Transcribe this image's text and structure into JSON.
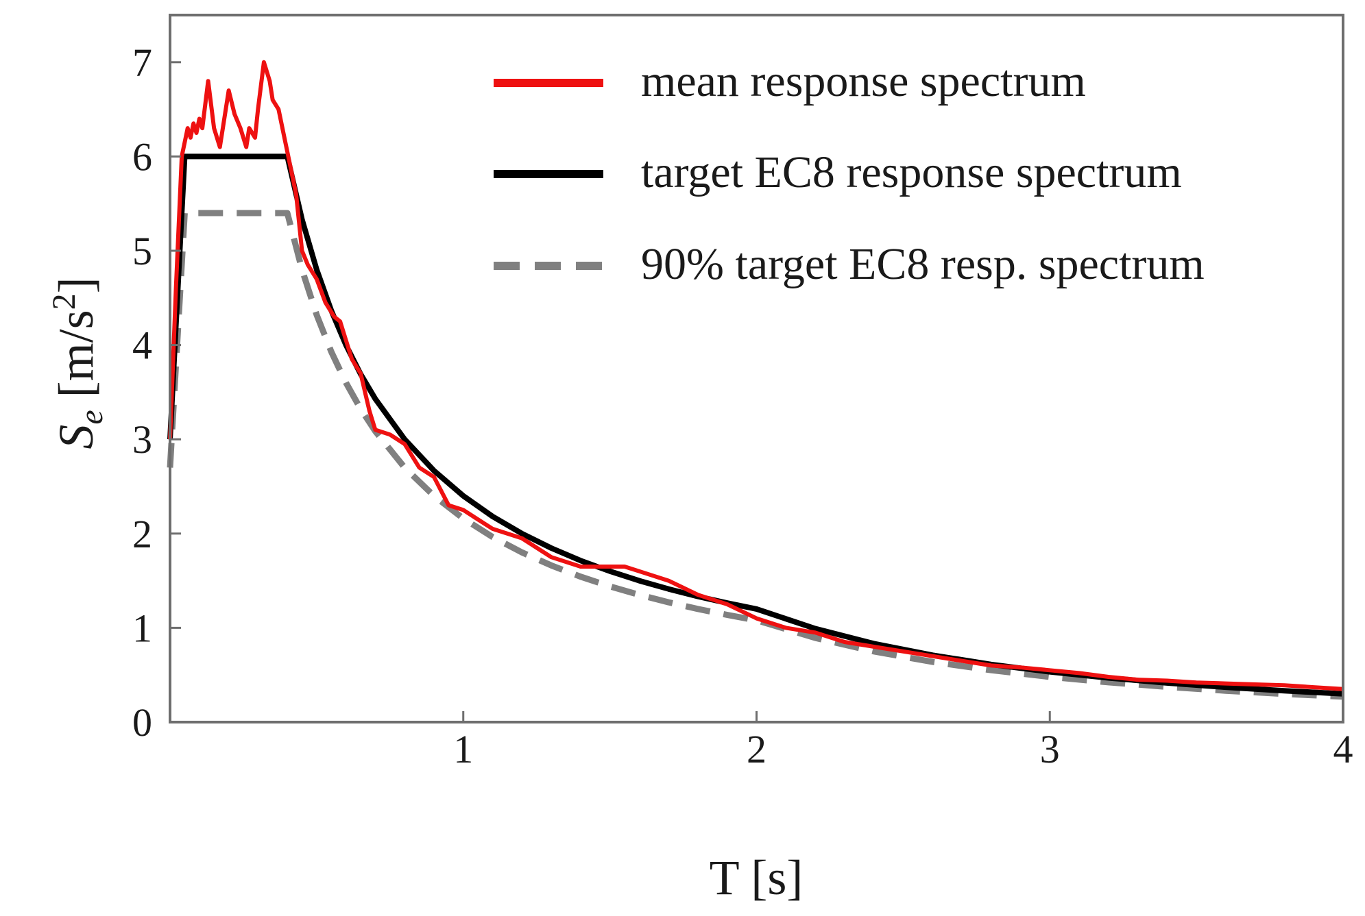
{
  "chart_data": {
    "type": "line",
    "title": "",
    "xlabel": "T [s]",
    "ylabel": {
      "base": "S",
      "subscript": "e",
      "unit_prefix": " [m/s",
      "unit_power": "2",
      "unit_suffix": "]"
    },
    "xlim": [
      0,
      4
    ],
    "ylim": [
      0,
      7.5
    ],
    "xticks": [
      1,
      2,
      3,
      4
    ],
    "yticks": [
      0,
      1,
      2,
      3,
      4,
      5,
      6,
      7
    ],
    "grid": false,
    "legend_position": "top-right",
    "series": [
      {
        "name": "mean response spectrum",
        "color": "#ee1111",
        "style": "solid",
        "points": [
          [
            0,
            3.0
          ],
          [
            0.02,
            4.6
          ],
          [
            0.04,
            6.0
          ],
          [
            0.05,
            6.15
          ],
          [
            0.06,
            6.3
          ],
          [
            0.07,
            6.2
          ],
          [
            0.08,
            6.35
          ],
          [
            0.09,
            6.25
          ],
          [
            0.1,
            6.4
          ],
          [
            0.11,
            6.3
          ],
          [
            0.13,
            6.8
          ],
          [
            0.15,
            6.3
          ],
          [
            0.17,
            6.1
          ],
          [
            0.2,
            6.7
          ],
          [
            0.22,
            6.45
          ],
          [
            0.24,
            6.3
          ],
          [
            0.26,
            6.1
          ],
          [
            0.27,
            6.3
          ],
          [
            0.29,
            6.2
          ],
          [
            0.3,
            6.5
          ],
          [
            0.32,
            7.0
          ],
          [
            0.34,
            6.8
          ],
          [
            0.35,
            6.6
          ],
          [
            0.37,
            6.5
          ],
          [
            0.39,
            6.2
          ],
          [
            0.41,
            5.9
          ],
          [
            0.43,
            5.6
          ],
          [
            0.45,
            5.0
          ],
          [
            0.47,
            4.85
          ],
          [
            0.5,
            4.7
          ],
          [
            0.53,
            4.45
          ],
          [
            0.56,
            4.3
          ],
          [
            0.58,
            4.25
          ],
          [
            0.62,
            3.85
          ],
          [
            0.65,
            3.7
          ],
          [
            0.68,
            3.3
          ],
          [
            0.7,
            3.1
          ],
          [
            0.75,
            3.05
          ],
          [
            0.8,
            2.95
          ],
          [
            0.85,
            2.7
          ],
          [
            0.9,
            2.6
          ],
          [
            0.95,
            2.3
          ],
          [
            1.0,
            2.25
          ],
          [
            1.05,
            2.15
          ],
          [
            1.1,
            2.05
          ],
          [
            1.2,
            1.95
          ],
          [
            1.3,
            1.75
          ],
          [
            1.4,
            1.65
          ],
          [
            1.5,
            1.65
          ],
          [
            1.55,
            1.65
          ],
          [
            1.6,
            1.6
          ],
          [
            1.7,
            1.5
          ],
          [
            1.8,
            1.35
          ],
          [
            1.9,
            1.25
          ],
          [
            2.0,
            1.1
          ],
          [
            2.1,
            1.0
          ],
          [
            2.2,
            0.95
          ],
          [
            2.3,
            0.85
          ],
          [
            2.4,
            0.8
          ],
          [
            2.5,
            0.75
          ],
          [
            2.6,
            0.7
          ],
          [
            2.7,
            0.65
          ],
          [
            2.8,
            0.6
          ],
          [
            2.9,
            0.58
          ],
          [
            3.0,
            0.55
          ],
          [
            3.1,
            0.52
          ],
          [
            3.2,
            0.48
          ],
          [
            3.3,
            0.45
          ],
          [
            3.4,
            0.44
          ],
          [
            3.5,
            0.42
          ],
          [
            3.6,
            0.41
          ],
          [
            3.7,
            0.4
          ],
          [
            3.8,
            0.39
          ],
          [
            3.9,
            0.37
          ],
          [
            4.0,
            0.35
          ]
        ]
      },
      {
        "name": "target EC8 response spectrum",
        "color": "#000000",
        "style": "solid",
        "points": [
          [
            0,
            3.0
          ],
          [
            0.05,
            6.0
          ],
          [
            0.4,
            6.0
          ],
          [
            0.45,
            5.333
          ],
          [
            0.5,
            4.8
          ],
          [
            0.55,
            4.364
          ],
          [
            0.6,
            4.0
          ],
          [
            0.65,
            3.692
          ],
          [
            0.7,
            3.429
          ],
          [
            0.8,
            3.0
          ],
          [
            0.9,
            2.667
          ],
          [
            1.0,
            2.4
          ],
          [
            1.1,
            2.182
          ],
          [
            1.2,
            2.0
          ],
          [
            1.3,
            1.846
          ],
          [
            1.4,
            1.714
          ],
          [
            1.5,
            1.6
          ],
          [
            1.6,
            1.5
          ],
          [
            1.7,
            1.412
          ],
          [
            1.8,
            1.333
          ],
          [
            1.9,
            1.263
          ],
          [
            2.0,
            1.2
          ],
          [
            2.2,
            0.992
          ],
          [
            2.4,
            0.833
          ],
          [
            2.6,
            0.71
          ],
          [
            2.8,
            0.612
          ],
          [
            3.0,
            0.533
          ],
          [
            3.2,
            0.469
          ],
          [
            3.4,
            0.415
          ],
          [
            3.6,
            0.37
          ],
          [
            3.8,
            0.332
          ],
          [
            4.0,
            0.3
          ]
        ]
      },
      {
        "name": "90% target EC8 resp. spectrum",
        "color": "#808080",
        "style": "dashed",
        "points": [
          [
            0,
            2.7
          ],
          [
            0.05,
            5.4
          ],
          [
            0.4,
            5.4
          ],
          [
            0.45,
            4.8
          ],
          [
            0.5,
            4.32
          ],
          [
            0.55,
            3.927
          ],
          [
            0.6,
            3.6
          ],
          [
            0.65,
            3.323
          ],
          [
            0.7,
            3.086
          ],
          [
            0.8,
            2.7
          ],
          [
            0.9,
            2.4
          ],
          [
            1.0,
            2.16
          ],
          [
            1.1,
            1.964
          ],
          [
            1.2,
            1.8
          ],
          [
            1.3,
            1.662
          ],
          [
            1.4,
            1.543
          ],
          [
            1.5,
            1.44
          ],
          [
            1.6,
            1.35
          ],
          [
            1.7,
            1.271
          ],
          [
            1.8,
            1.2
          ],
          [
            1.9,
            1.137
          ],
          [
            2.0,
            1.08
          ],
          [
            2.2,
            0.893
          ],
          [
            2.4,
            0.75
          ],
          [
            2.6,
            0.639
          ],
          [
            2.8,
            0.551
          ],
          [
            3.0,
            0.48
          ],
          [
            3.2,
            0.422
          ],
          [
            3.4,
            0.374
          ],
          [
            3.6,
            0.333
          ],
          [
            3.8,
            0.299
          ],
          [
            4.0,
            0.27
          ]
        ]
      }
    ]
  }
}
